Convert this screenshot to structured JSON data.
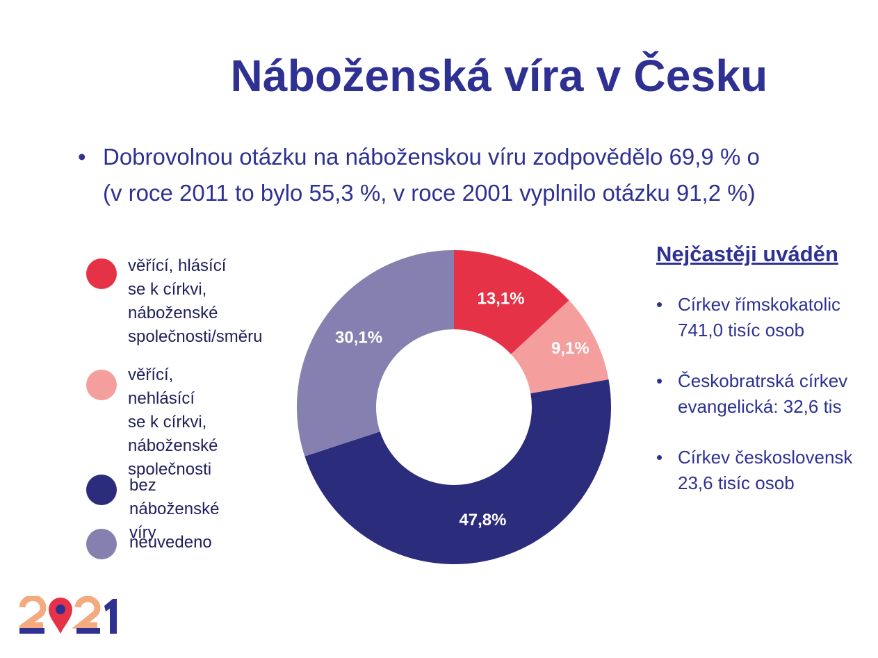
{
  "slide": {
    "title": "Náboženská víra v Česku",
    "intro_bullet": "•",
    "intro_line1": "Dobrovolnou otázku na náboženskou víru zodpovědělo 69,9 % o",
    "intro_line2": "(v roce 2011 to bylo 55,3 %, v roce 2001 vyplnilo otázku 91,2 %)"
  },
  "legend": [
    {
      "label": "věřící, hlásící\nse k církvi,\nnáboženské\nspolečnosti/směru",
      "color": "#e63247"
    },
    {
      "label": "věřící, nehlásící\nse k církvi,\nnáboženské\nspolečnosti",
      "color": "#f59e9e"
    },
    {
      "label": "bez náboženské\nvíry",
      "color": "#2b2c7c"
    },
    {
      "label": "neuvedeno",
      "color": "#8680b1"
    }
  ],
  "chart_data": {
    "type": "pie",
    "donut": true,
    "categories": [
      "věřící, hlásící se k církvi, náboženské společnosti/směru",
      "věřící, nehlásící se k církvi, náboženské společnosti",
      "bez náboženské víry",
      "neuvedeno"
    ],
    "values": [
      13.1,
      9.1,
      47.8,
      30.1
    ],
    "data_labels": [
      "13,1%",
      "9,1%",
      "47,8%",
      "30,1%"
    ],
    "colors": [
      "#e63247",
      "#f59e9e",
      "#2b2c7c",
      "#8680b1"
    ]
  },
  "side": {
    "heading": "Nejčastěji uváděn",
    "bullet": "•",
    "items": [
      {
        "line1": "Církev římskokatolic",
        "line2": "741,0 tisíc osob"
      },
      {
        "line1": "Českobratrská církev",
        "line2": "evangelická: 32,6 tis"
      },
      {
        "line1": "Církev československ",
        "line2": "23,6 tisíc osob"
      }
    ]
  },
  "logo": {
    "text": "2021",
    "colors": {
      "orange": "#f4a97f",
      "navy": "#2e3192",
      "red": "#e63247"
    }
  }
}
